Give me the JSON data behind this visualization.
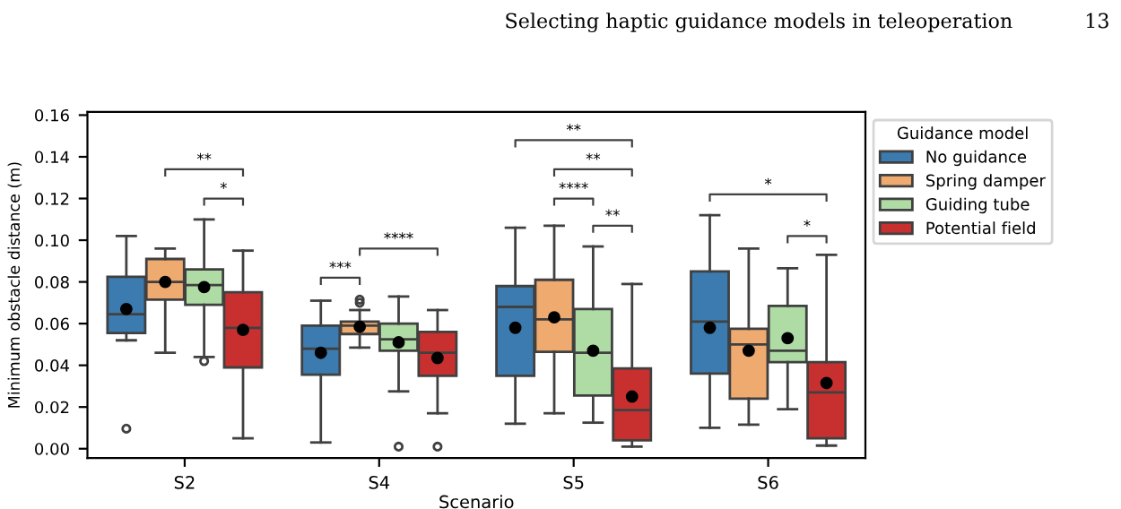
{
  "chart_data": {
    "type": "box",
    "xlabel": "Scenario",
    "ylabel": "Minimum obstacle distance (m)",
    "legend_title": "Guidance model",
    "legend": "right",
    "grid": false,
    "categories": [
      "S2",
      "S4",
      "S5",
      "S6"
    ],
    "ylim": [
      -0.0045,
      0.1615
    ],
    "yticks": [
      {
        "value": 0,
        "label": "0.00"
      },
      {
        "value": 0.02,
        "label": "0.02"
      },
      {
        "value": 0.04,
        "label": "0.04"
      },
      {
        "value": 0.06,
        "label": "0.06"
      },
      {
        "value": 0.08,
        "label": "0.08"
      },
      {
        "value": 0.1,
        "label": "0.10"
      },
      {
        "value": 0.12,
        "label": "0.12"
      },
      {
        "value": 0.14,
        "label": "0.14"
      },
      {
        "value": 0.16,
        "label": "0.16"
      }
    ],
    "series": [
      {
        "name": "No guidance",
        "color": "#3b7bb0",
        "boxes": [
          {
            "low": 0.052,
            "q1": 0.0555,
            "median": 0.0645,
            "q3": 0.0825,
            "high": 0.102,
            "mean": 0.067,
            "outliers": [
              0.0096
            ]
          },
          {
            "low": 0.003,
            "q1": 0.0355,
            "median": 0.048,
            "q3": 0.059,
            "high": 0.071,
            "mean": 0.046
          },
          {
            "low": 0.012,
            "q1": 0.035,
            "median": 0.068,
            "q3": 0.078,
            "high": 0.106,
            "mean": 0.058
          },
          {
            "low": 0.01,
            "q1": 0.036,
            "median": 0.061,
            "q3": 0.085,
            "high": 0.112,
            "mean": 0.058
          }
        ]
      },
      {
        "name": "Spring damper",
        "color": "#eeaa6f",
        "boxes": [
          {
            "low": 0.046,
            "q1": 0.0715,
            "median": 0.08,
            "q3": 0.091,
            "high": 0.096,
            "mean": 0.08
          },
          {
            "low": 0.0485,
            "q1": 0.055,
            "median": 0.059,
            "q3": 0.061,
            "high": 0.0665,
            "mean": 0.0585,
            "outliers": [
              0.07,
              0.0715
            ]
          },
          {
            "low": 0.017,
            "q1": 0.0465,
            "median": 0.062,
            "q3": 0.081,
            "high": 0.107,
            "mean": 0.063
          },
          {
            "low": 0.0115,
            "q1": 0.024,
            "median": 0.05,
            "q3": 0.0575,
            "high": 0.096,
            "mean": 0.047
          }
        ]
      },
      {
        "name": "Guiding tube",
        "color": "#afdca5",
        "boxes": [
          {
            "low": 0.044,
            "q1": 0.069,
            "median": 0.0785,
            "q3": 0.086,
            "high": 0.11,
            "mean": 0.0775,
            "outliers": [
              0.042
            ]
          },
          {
            "low": 0.0275,
            "q1": 0.047,
            "median": 0.0525,
            "q3": 0.06,
            "high": 0.073,
            "mean": 0.051,
            "outliers": [
              0.001
            ]
          },
          {
            "low": 0.0125,
            "q1": 0.0255,
            "median": 0.046,
            "q3": 0.067,
            "high": 0.097,
            "mean": 0.047
          },
          {
            "low": 0.019,
            "q1": 0.0415,
            "median": 0.047,
            "q3": 0.0685,
            "high": 0.0865,
            "mean": 0.053
          }
        ]
      },
      {
        "name": "Potential field",
        "color": "#c8302f",
        "boxes": [
          {
            "low": 0.005,
            "q1": 0.039,
            "median": 0.058,
            "q3": 0.075,
            "high": 0.095,
            "mean": 0.057
          },
          {
            "low": 0.017,
            "q1": 0.035,
            "median": 0.046,
            "q3": 0.056,
            "high": 0.0665,
            "mean": 0.0435,
            "outliers": [
              0.001
            ]
          },
          {
            "low": 0.001,
            "q1": 0.004,
            "median": 0.0185,
            "q3": 0.0385,
            "high": 0.079,
            "mean": 0.025
          },
          {
            "low": 0.0015,
            "q1": 0.005,
            "median": 0.027,
            "q3": 0.0415,
            "high": 0.093,
            "mean": 0.0315
          }
        ]
      }
    ],
    "annotations": [
      "Selecting haptic guidance models in teleoperation",
      "13",
      "**",
      "*",
      "***",
      "****",
      "**",
      "**",
      "****",
      "**",
      "*",
      "*"
    ]
  }
}
